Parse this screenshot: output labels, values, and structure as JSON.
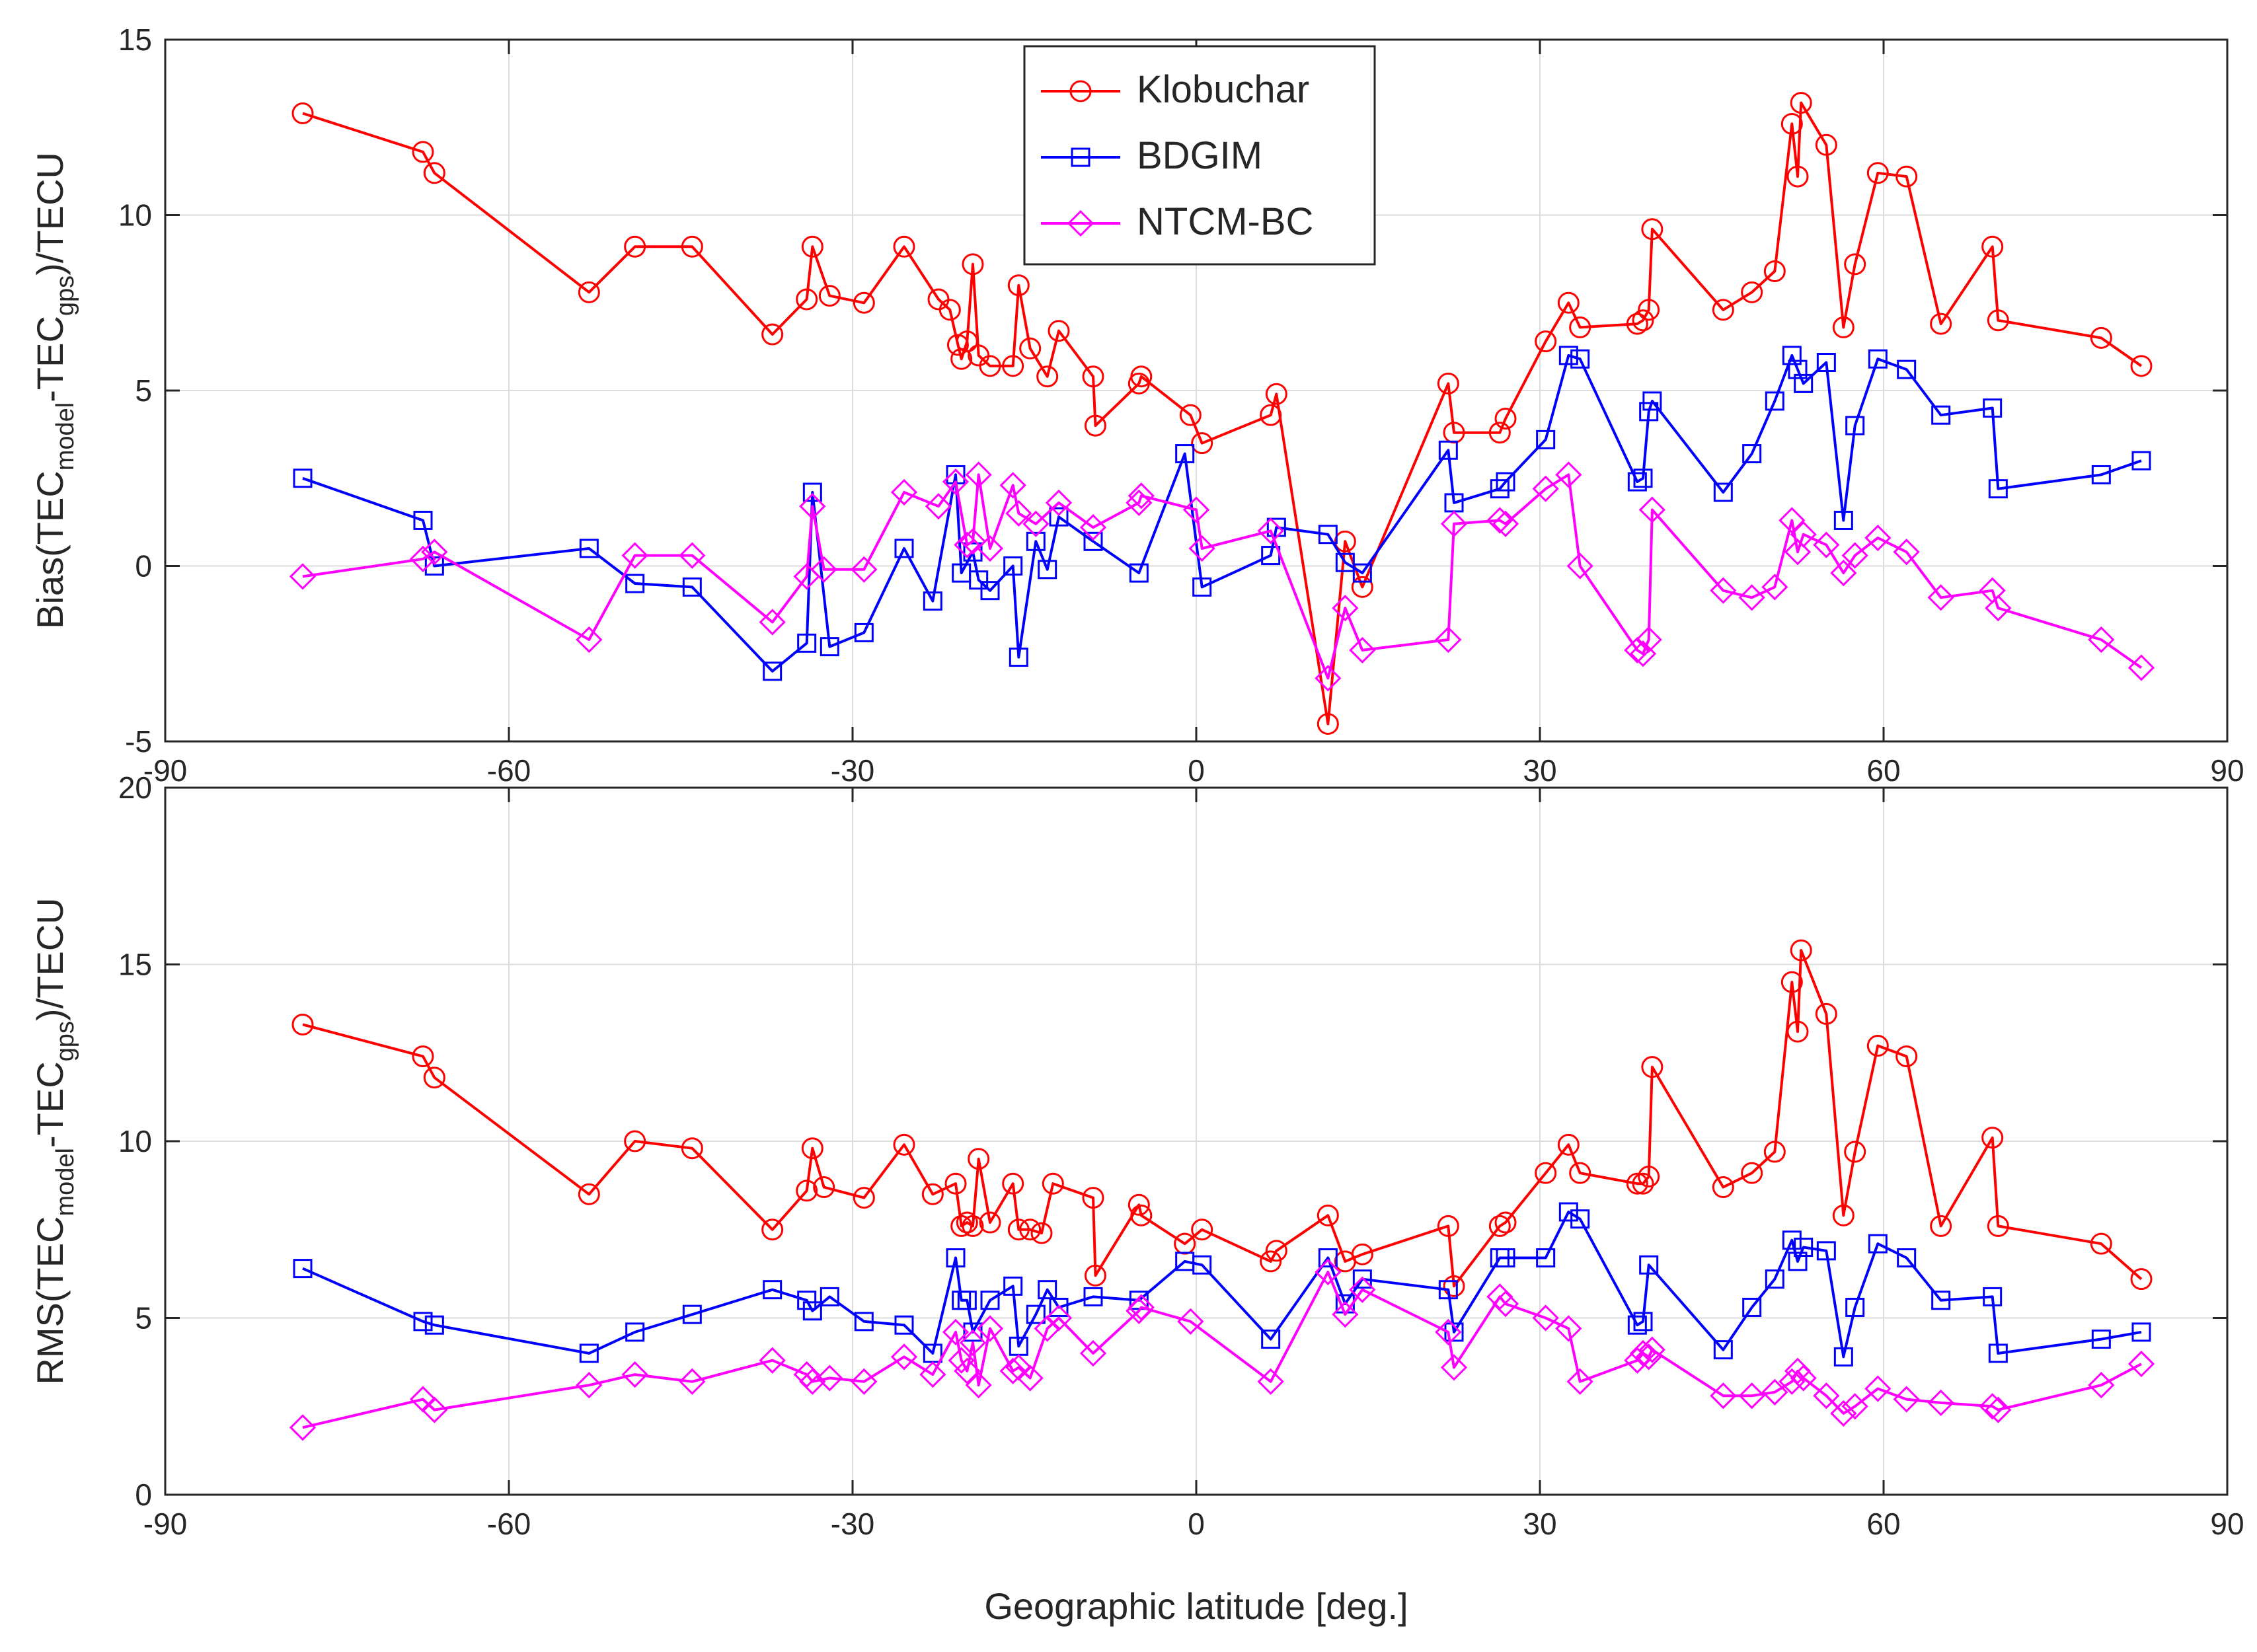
{
  "figure": {
    "xlabel": "Geographic latitude [deg.]",
    "colors": {
      "Klobuchar": "#ff0000",
      "BDGIM": "#0000ff",
      "NTCM-BC": "#ff00ff",
      "grid": "#dcdcdc",
      "axes": "#262626"
    }
  },
  "legend": {
    "entries": [
      {
        "name": "Klobuchar",
        "marker": "circle"
      },
      {
        "name": "BDGIM",
        "marker": "square"
      },
      {
        "name": "NTCM-BC",
        "marker": "diamond"
      }
    ]
  },
  "chart_data": [
    {
      "type": "line",
      "id": "bias",
      "ylabel_parts": [
        "Bias(TEC",
        "model",
        "-TEC",
        "gps",
        ")/TECU"
      ],
      "xlim": [
        -90,
        90
      ],
      "ylim": [
        -5,
        15
      ],
      "xticks": [
        -90,
        -60,
        -30,
        0,
        30,
        60,
        90
      ],
      "yticks": [
        -5,
        0,
        5,
        10,
        15
      ],
      "xtick_labels": [
        "-90",
        "-60",
        "-30",
        "0",
        "30",
        "60",
        "90"
      ],
      "ytick_labels": [
        "-5",
        "0",
        "5",
        "10",
        "15"
      ],
      "grid": true,
      "legend_position": "top-center",
      "series": [
        {
          "name": "Klobuchar",
          "marker": "circle",
          "x": [
            -78,
            -67.5,
            -66.5,
            -53,
            -49,
            -44,
            -37,
            -34,
            -33.5,
            -32,
            -29,
            -25.5,
            -22.5,
            -21.5,
            -20.8,
            -20.5,
            -20,
            -19.5,
            -19,
            -18,
            -16,
            -15.5,
            -14.5,
            -13,
            -12,
            -9,
            -8.8,
            -5,
            -4.8,
            -0.5,
            0.5,
            6.5,
            7,
            11.5,
            13,
            14.5,
            22,
            22.5,
            26.5,
            27,
            30.5,
            32.5,
            33.5,
            38.5,
            39,
            39.5,
            39.8,
            46,
            48.5,
            50.5,
            52,
            52.5,
            52.8,
            55,
            56.5,
            57.5,
            59.5,
            62,
            65,
            69.5,
            70,
            79,
            82.5
          ],
          "values": [
            12.9,
            11.8,
            11.2,
            7.8,
            9.1,
            9.1,
            6.6,
            7.6,
            9.1,
            7.7,
            7.5,
            9.1,
            7.6,
            7.3,
            6.3,
            5.9,
            6.4,
            8.6,
            6.0,
            5.7,
            5.7,
            8.0,
            6.2,
            5.4,
            6.7,
            5.4,
            4.0,
            5.2,
            5.4,
            4.3,
            3.5,
            4.3,
            4.9,
            -4.5,
            0.7,
            -0.6,
            5.2,
            3.8,
            3.8,
            4.2,
            6.4,
            7.5,
            6.8,
            6.9,
            7.0,
            7.3,
            9.6,
            7.3,
            7.8,
            8.4,
            12.6,
            11.1,
            13.2,
            12.0,
            6.8,
            8.6,
            11.2,
            11.1,
            6.9,
            9.1,
            7.0,
            6.5,
            5.7
          ]
        },
        {
          "name": "BDGIM",
          "marker": "square",
          "x": [
            -78,
            -67.5,
            -66.5,
            -53,
            -49,
            -44,
            -37,
            -34,
            -33.5,
            -32,
            -29,
            -25.5,
            -23,
            -21,
            -20.5,
            -19.5,
            -19,
            -18,
            -16,
            -15.5,
            -14,
            -13,
            -12,
            -9,
            -5,
            -1,
            0.5,
            6.5,
            7,
            11.5,
            13,
            14.5,
            22,
            22.5,
            26.5,
            27,
            30.5,
            32.5,
            33.5,
            38.5,
            39,
            39.5,
            39.8,
            46,
            48.5,
            50.5,
            52,
            52.5,
            53,
            55,
            56.5,
            57.5,
            59.5,
            62,
            65,
            69.5,
            70,
            79,
            82.5
          ],
          "values": [
            2.5,
            1.3,
            0.0,
            0.5,
            -0.5,
            -0.6,
            -3.0,
            -2.2,
            2.1,
            -2.3,
            -1.9,
            0.5,
            -1.0,
            2.6,
            -0.2,
            0.4,
            -0.4,
            -0.7,
            0.0,
            -2.6,
            0.7,
            -0.1,
            1.4,
            0.7,
            -0.2,
            3.2,
            -0.6,
            0.3,
            1.1,
            0.9,
            0.1,
            -0.2,
            3.3,
            1.8,
            2.2,
            2.4,
            3.6,
            6.0,
            5.9,
            2.4,
            2.5,
            4.4,
            4.7,
            2.1,
            3.2,
            4.7,
            6.0,
            5.6,
            5.2,
            5.8,
            1.3,
            4.0,
            5.9,
            5.6,
            4.3,
            4.5,
            2.2,
            2.6,
            3.0
          ]
        },
        {
          "name": "NTCM-BC",
          "marker": "diamond",
          "x": [
            -78,
            -67.5,
            -66.5,
            -53,
            -49,
            -44,
            -37,
            -34,
            -33.5,
            -32.5,
            -29,
            -25.5,
            -22.5,
            -21,
            -20,
            -19.5,
            -19,
            -18,
            -16,
            -15.5,
            -14,
            -12,
            -9,
            -5,
            -4.8,
            0,
            0.5,
            6.5,
            11.5,
            13,
            14.5,
            22,
            22.5,
            26.5,
            27,
            30.5,
            32.5,
            33.5,
            38.5,
            39,
            39.5,
            39.8,
            46,
            48.5,
            50.5,
            52,
            52.5,
            53,
            55,
            56.5,
            57.5,
            59.5,
            62,
            65,
            69.5,
            70,
            79,
            82.5
          ],
          "values": [
            -0.3,
            0.2,
            0.4,
            -2.1,
            0.3,
            0.3,
            -1.6,
            -0.3,
            1.7,
            -0.1,
            -0.1,
            2.1,
            1.7,
            2.4,
            0.6,
            0.7,
            2.6,
            0.5,
            2.3,
            1.5,
            1.2,
            1.8,
            1.1,
            1.8,
            2.0,
            1.6,
            0.5,
            1.0,
            -3.2,
            -1.2,
            -2.4,
            -2.1,
            1.2,
            1.3,
            1.2,
            2.2,
            2.6,
            0.0,
            -2.4,
            -2.5,
            -2.1,
            1.6,
            -0.7,
            -0.9,
            -0.6,
            1.3,
            0.4,
            0.9,
            0.6,
            -0.2,
            0.3,
            0.8,
            0.4,
            -0.9,
            -0.7,
            -1.2,
            -2.1,
            -2.9
          ]
        }
      ]
    },
    {
      "type": "line",
      "id": "rms",
      "ylabel_parts": [
        "RMS(TEC",
        "model",
        "-TEC",
        "gps",
        ")/TECU"
      ],
      "xlabel": "Geographic latitude [deg.]",
      "xlim": [
        -90,
        90
      ],
      "ylim": [
        0,
        20
      ],
      "xticks": [
        -90,
        -60,
        -30,
        0,
        30,
        60,
        90
      ],
      "yticks": [
        0,
        5,
        10,
        15,
        20
      ],
      "xtick_labels": [
        "-90",
        "-60",
        "-30",
        "0",
        "30",
        "60",
        "90"
      ],
      "ytick_labels": [
        "0",
        "5",
        "10",
        "15",
        "20"
      ],
      "grid": true,
      "series": [
        {
          "name": "Klobuchar",
          "marker": "circle",
          "x": [
            -78,
            -67.5,
            -66.5,
            -53,
            -49,
            -44,
            -37,
            -34,
            -33.5,
            -32.5,
            -29,
            -25.5,
            -23,
            -21,
            -20.5,
            -20,
            -19.5,
            -19,
            -18,
            -16,
            -15.5,
            -14.5,
            -13.5,
            -12.5,
            -9,
            -8.8,
            -5,
            -4.8,
            -1,
            0.5,
            6.5,
            7,
            11.5,
            13,
            14.5,
            22,
            22.5,
            26.5,
            27,
            30.5,
            32.5,
            33.5,
            38.5,
            39,
            39.5,
            39.8,
            46,
            48.5,
            50.5,
            52,
            52.5,
            52.8,
            55,
            56.5,
            57.5,
            59.5,
            62,
            65,
            69.5,
            70,
            79,
            82.5
          ],
          "values": [
            13.3,
            12.4,
            11.8,
            8.5,
            10.0,
            9.8,
            7.5,
            8.6,
            9.8,
            8.7,
            8.4,
            9.9,
            8.5,
            8.8,
            7.6,
            7.7,
            7.6,
            9.5,
            7.7,
            8.8,
            7.5,
            7.5,
            7.4,
            8.8,
            8.4,
            6.2,
            8.2,
            7.9,
            7.1,
            7.5,
            6.6,
            6.9,
            7.9,
            6.6,
            6.8,
            7.6,
            5.9,
            7.6,
            7.7,
            9.1,
            9.9,
            9.1,
            8.8,
            8.8,
            9.0,
            12.1,
            8.7,
            9.1,
            9.7,
            14.5,
            13.1,
            15.4,
            13.6,
            7.9,
            9.7,
            12.7,
            12.4,
            7.6,
            10.1,
            7.6,
            7.1,
            6.1
          ]
        },
        {
          "name": "BDGIM",
          "marker": "square",
          "x": [
            -78,
            -67.5,
            -66.5,
            -53,
            -49,
            -44,
            -37,
            -34,
            -33.5,
            -32,
            -29,
            -25.5,
            -23,
            -21,
            -20.5,
            -20,
            -19.5,
            -18,
            -16,
            -15.5,
            -14,
            -13,
            -12,
            -9,
            -5,
            -1,
            0.5,
            6.5,
            11.5,
            13,
            14.5,
            22,
            22.5,
            26.5,
            27,
            30.5,
            32.5,
            33.5,
            38.5,
            39,
            39.5,
            46,
            48.5,
            50.5,
            52,
            52.5,
            53,
            55,
            56.5,
            57.5,
            59.5,
            62,
            65,
            69.5,
            70,
            79,
            82.5
          ],
          "values": [
            6.4,
            4.9,
            4.8,
            4.0,
            4.6,
            5.1,
            5.8,
            5.5,
            5.2,
            5.6,
            4.9,
            4.8,
            4.0,
            6.7,
            5.5,
            5.5,
            4.6,
            5.5,
            5.9,
            4.2,
            5.1,
            5.8,
            5.3,
            5.6,
            5.5,
            6.6,
            6.5,
            4.4,
            6.7,
            5.4,
            6.1,
            5.8,
            4.6,
            6.7,
            6.7,
            6.7,
            8.0,
            7.8,
            4.8,
            4.9,
            6.5,
            4.1,
            5.3,
            6.1,
            7.2,
            6.6,
            7.0,
            6.9,
            3.9,
            5.3,
            7.1,
            6.7,
            5.5,
            5.6,
            4.0,
            4.4,
            4.6
          ]
        },
        {
          "name": "NTCM-BC",
          "marker": "diamond",
          "x": [
            -78,
            -67.5,
            -66.5,
            -53,
            -49,
            -44,
            -37,
            -34,
            -33.5,
            -32,
            -29,
            -25.5,
            -23,
            -21,
            -20.5,
            -20,
            -19.5,
            -19,
            -18,
            -16,
            -15.5,
            -14.5,
            -13,
            -12,
            -9,
            -5,
            -4.8,
            -0.5,
            6.5,
            11.5,
            13,
            14.5,
            22,
            22.5,
            26.5,
            27,
            30.5,
            32.5,
            33.5,
            38.5,
            39,
            39.5,
            39.8,
            46,
            48.5,
            50.5,
            52,
            52.5,
            53,
            55,
            56.5,
            57.5,
            59.5,
            62,
            65,
            69.5,
            70,
            79,
            82.5
          ],
          "values": [
            1.9,
            2.7,
            2.4,
            3.1,
            3.4,
            3.2,
            3.8,
            3.4,
            3.2,
            3.3,
            3.2,
            3.9,
            3.4,
            4.6,
            3.8,
            3.5,
            4.3,
            3.1,
            4.7,
            3.5,
            3.6,
            3.3,
            4.7,
            5.0,
            4.0,
            5.2,
            5.3,
            4.9,
            3.2,
            6.3,
            5.1,
            5.8,
            4.6,
            3.6,
            5.6,
            5.4,
            5.0,
            4.7,
            3.2,
            3.8,
            4.0,
            3.9,
            4.1,
            2.8,
            2.8,
            2.9,
            3.2,
            3.5,
            3.3,
            2.8,
            2.3,
            2.5,
            3.0,
            2.7,
            2.6,
            2.5,
            2.4,
            3.1,
            3.7
          ]
        }
      ]
    }
  ]
}
